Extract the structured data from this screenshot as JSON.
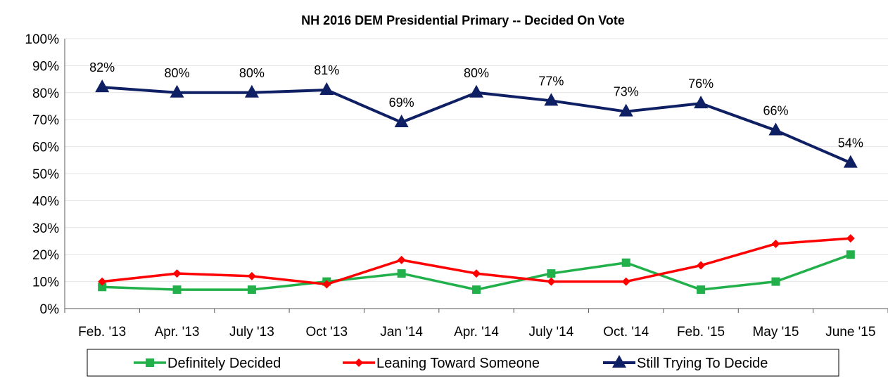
{
  "chart_data": {
    "type": "line",
    "title": "NH 2016 DEM Presidential Primary -- Decided On Vote",
    "xlabel": "",
    "ylabel": "",
    "categories": [
      "Feb. '13",
      "Apr. '13",
      "July '13",
      "Oct '13",
      "Jan '14",
      "Apr. '14",
      "July '14",
      "Oct. '14",
      "Feb. '15",
      "May '15",
      "June '15"
    ],
    "ylim": [
      0,
      100
    ],
    "yticks": [
      "0%",
      "10%",
      "20%",
      "30%",
      "40%",
      "50%",
      "60%",
      "70%",
      "80%",
      "90%",
      "100%"
    ],
    "grid": true,
    "legend_position": "bottom",
    "series": [
      {
        "name": "Definitely Decided",
        "color": "#22b04b",
        "marker": "square",
        "values": [
          8,
          7,
          7,
          10,
          13,
          7,
          13,
          17,
          7,
          10,
          20
        ]
      },
      {
        "name": "Leaning Toward Someone",
        "color": "#ff0000",
        "marker": "diamond",
        "values": [
          10,
          13,
          12,
          9,
          18,
          13,
          10,
          10,
          16,
          24,
          26
        ]
      },
      {
        "name": "Still Trying To Decide",
        "color": "#0f1f63",
        "marker": "triangle",
        "values": [
          82,
          80,
          80,
          81,
          69,
          80,
          77,
          73,
          76,
          66,
          54
        ],
        "data_labels": [
          "82%",
          "80%",
          "80%",
          "81%",
          "69%",
          "80%",
          "77%",
          "73%",
          "76%",
          "66%",
          "54%"
        ]
      }
    ]
  }
}
